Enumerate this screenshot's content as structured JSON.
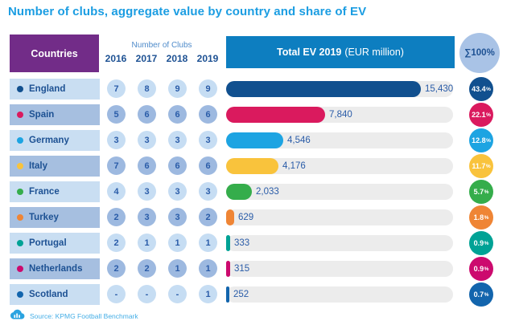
{
  "title": "Number of clubs, aggregate value by country and share of EV",
  "header": {
    "countries_label": "Countries",
    "clubs_label": "Number of Clubs",
    "years": [
      "2016",
      "2017",
      "2018",
      "2019"
    ],
    "ev_label": "Total EV 2019",
    "ev_sublabel": "(EUR million)",
    "sum_label": "∑100%"
  },
  "footer": {
    "source": "Source: KPMG Football Benchmark"
  },
  "colors": {
    "title": "#1b9de2",
    "countries_header_bg": "#722c88",
    "ev_header_bg": "#0d7ec0",
    "sum_circle_bg": "#a9c3e6",
    "dark_text": "#1d5193",
    "row_light_bg": "#c9def2",
    "row_dark_bg": "#a6bfe0",
    "bar_track": "#ececec"
  },
  "chart_data": {
    "type": "table",
    "title": "Number of clubs, aggregate value by country and share of EV",
    "columns": [
      "Countries",
      "2016",
      "2017",
      "2018",
      "2019",
      "Total EV 2019 (EUR million)",
      "Share of EV"
    ],
    "bar_scale_max": 18000,
    "percent_suffix": "%",
    "rows": [
      {
        "country": "England",
        "clubs": [
          "7",
          "8",
          "9",
          "9"
        ],
        "ev": 15430,
        "ev_label": "15,430",
        "share": "43.4",
        "color": "#11508f"
      },
      {
        "country": "Spain",
        "clubs": [
          "5",
          "6",
          "6",
          "6"
        ],
        "ev": 7840,
        "ev_label": "7,840",
        "share": "22.1",
        "color": "#da1a5e"
      },
      {
        "country": "Germany",
        "clubs": [
          "3",
          "3",
          "3",
          "3"
        ],
        "ev": 4546,
        "ev_label": "4,546",
        "share": "12.8",
        "color": "#1da4e2"
      },
      {
        "country": "Italy",
        "clubs": [
          "7",
          "6",
          "6",
          "6"
        ],
        "ev": 4176,
        "ev_label": "4,176",
        "share": "11.7",
        "color": "#f9c33c"
      },
      {
        "country": "France",
        "clubs": [
          "4",
          "3",
          "3",
          "3"
        ],
        "ev": 2033,
        "ev_label": "2,033",
        "share": "5.7",
        "color": "#35ad4b"
      },
      {
        "country": "Turkey",
        "clubs": [
          "2",
          "3",
          "3",
          "2"
        ],
        "ev": 629,
        "ev_label": "629",
        "share": "1.8",
        "color": "#ef8535"
      },
      {
        "country": "Portugal",
        "clubs": [
          "2",
          "1",
          "1",
          "1"
        ],
        "ev": 333,
        "ev_label": "333",
        "share": "0.9",
        "color": "#00a295"
      },
      {
        "country": "Netherlands",
        "clubs": [
          "2",
          "2",
          "1",
          "1"
        ],
        "ev": 315,
        "ev_label": "315",
        "share": "0.9",
        "color": "#cc0a6e"
      },
      {
        "country": "Scotland",
        "clubs": [
          "-",
          "-",
          "-",
          "1"
        ],
        "ev": 252,
        "ev_label": "252",
        "share": "0.7",
        "color": "#1365ad"
      }
    ]
  }
}
